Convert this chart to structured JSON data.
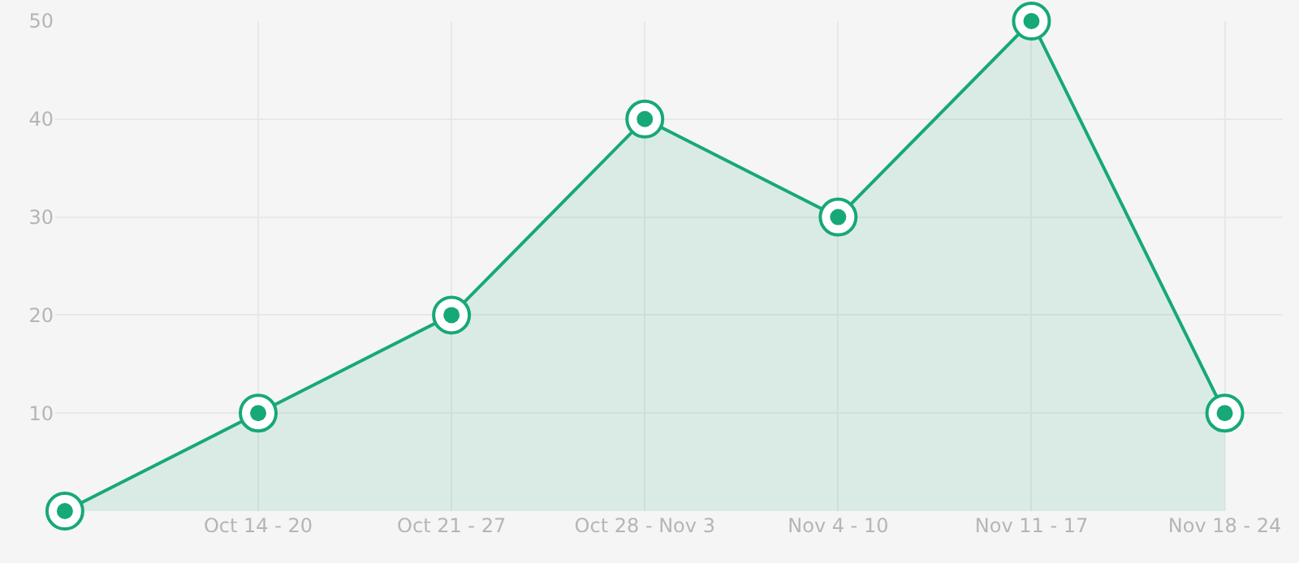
{
  "chart_data": {
    "type": "area",
    "categories": [
      null,
      "Oct 14 - 20",
      "Oct 21 - 27",
      "Oct 28 - Nov 3",
      "Nov 4 - 10",
      "Nov 11 - 17",
      "Nov 18 - 24"
    ],
    "values": [
      0,
      10,
      20,
      40,
      30,
      50,
      10
    ],
    "color": "#17a878",
    "ylim": [
      0,
      50
    ],
    "yticks": [
      10,
      20,
      30,
      40,
      50
    ],
    "grid": true,
    "marker": "circle",
    "line_style": "solid",
    "legend": false
  }
}
